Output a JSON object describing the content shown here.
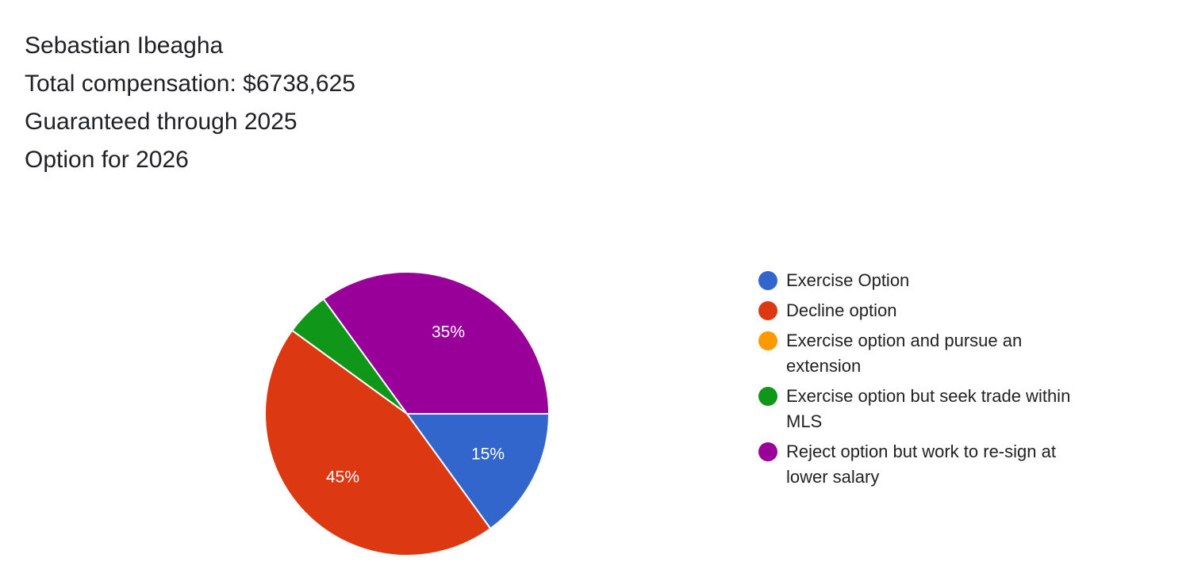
{
  "header": {
    "lines": [
      "Sebastian Ibeagha",
      "Total compensation: $6738,625",
      "Guaranteed through 2025",
      "Option for 2026"
    ]
  },
  "chart_data": {
    "type": "pie",
    "title": "",
    "legend_position": "right",
    "slices": [
      {
        "label": "Exercise Option",
        "value": 15,
        "display": "15%",
        "color": "#3366cc"
      },
      {
        "label": "Decline option",
        "value": 45,
        "display": "45%",
        "color": "#dc3912"
      },
      {
        "label": "Exercise option and pursue an extension",
        "value": 0,
        "display": "",
        "color": "#ff9900"
      },
      {
        "label": "Exercise option but seek trade within MLS",
        "value": 5,
        "display": "",
        "color": "#109618"
      },
      {
        "label": "Reject option but work to re-sign at lower salary",
        "value": 35,
        "display": "35%",
        "color": "#990099"
      }
    ]
  }
}
